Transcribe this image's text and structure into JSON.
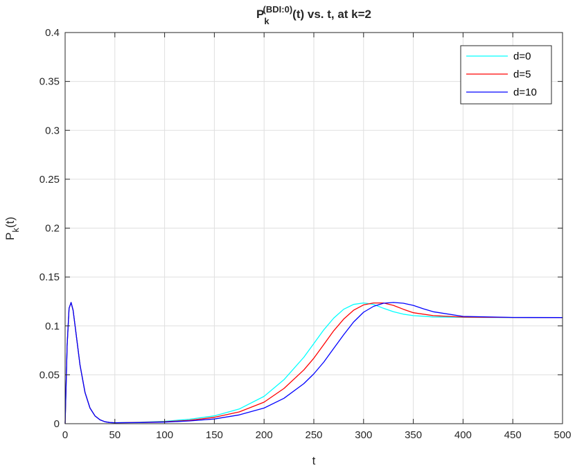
{
  "chart_data": {
    "type": "line",
    "title": {
      "main": "P",
      "sub": "k",
      "sup": "(BDI:0)",
      "rest": "(t) vs. t, at k=2"
    },
    "xlabel": "t",
    "ylabel": {
      "main": "P",
      "sub": "k",
      "rest": "(t)"
    },
    "xlim": [
      0,
      500
    ],
    "ylim": [
      0,
      0.4
    ],
    "xticks": [
      0,
      50,
      100,
      150,
      200,
      250,
      300,
      350,
      400,
      450,
      500
    ],
    "yticks": [
      0,
      0.05,
      0.1,
      0.15,
      0.2,
      0.25,
      0.3,
      0.35,
      0.4
    ],
    "xtick_labels": [
      "0",
      "50",
      "100",
      "150",
      "200",
      "250",
      "300",
      "350",
      "400",
      "450",
      "500"
    ],
    "ytick_labels": [
      "0",
      "0.05",
      "0.1",
      "0.15",
      "0.2",
      "0.25",
      "0.3",
      "0.35",
      "0.4"
    ],
    "grid": true,
    "legend_position": "top-right",
    "series": [
      {
        "name": "d=0",
        "color": "#00ffff",
        "x": [
          0,
          2,
          4,
          6,
          8,
          10,
          15,
          20,
          25,
          30,
          35,
          40,
          45,
          50,
          75,
          100,
          125,
          150,
          175,
          200,
          220,
          240,
          250,
          260,
          270,
          280,
          290,
          300,
          310,
          320,
          330,
          340,
          350,
          370,
          400,
          450,
          500
        ],
        "y": [
          0,
          0.08,
          0.118,
          0.124,
          0.116,
          0.1,
          0.06,
          0.032,
          0.016,
          0.008,
          0.004,
          0.002,
          0.0012,
          0.001,
          0.0015,
          0.0025,
          0.0045,
          0.008,
          0.015,
          0.028,
          0.045,
          0.068,
          0.082,
          0.096,
          0.108,
          0.117,
          0.122,
          0.1235,
          0.122,
          0.118,
          0.1145,
          0.112,
          0.1105,
          0.1092,
          0.1088,
          0.1085,
          0.1085
        ]
      },
      {
        "name": "d=5",
        "color": "#ff0000",
        "x": [
          0,
          2,
          4,
          6,
          8,
          10,
          15,
          20,
          25,
          30,
          35,
          40,
          45,
          50,
          75,
          100,
          125,
          150,
          175,
          200,
          220,
          240,
          250,
          260,
          270,
          280,
          290,
          300,
          310,
          320,
          330,
          340,
          350,
          370,
          400,
          450,
          500
        ],
        "y": [
          0,
          0.08,
          0.118,
          0.124,
          0.116,
          0.1,
          0.06,
          0.032,
          0.016,
          0.008,
          0.004,
          0.002,
          0.0012,
          0.001,
          0.0013,
          0.002,
          0.0035,
          0.0065,
          0.012,
          0.022,
          0.036,
          0.055,
          0.067,
          0.081,
          0.095,
          0.107,
          0.116,
          0.1215,
          0.1235,
          0.1235,
          0.121,
          0.117,
          0.1135,
          0.1105,
          0.109,
          0.1086,
          0.1085
        ]
      },
      {
        "name": "d=10",
        "color": "#0000ff",
        "x": [
          0,
          2,
          4,
          6,
          8,
          10,
          15,
          20,
          25,
          30,
          35,
          40,
          45,
          50,
          75,
          100,
          125,
          150,
          175,
          200,
          220,
          240,
          250,
          260,
          270,
          280,
          290,
          300,
          310,
          320,
          330,
          340,
          350,
          360,
          370,
          400,
          450,
          500
        ],
        "y": [
          0,
          0.08,
          0.118,
          0.124,
          0.116,
          0.1,
          0.06,
          0.032,
          0.016,
          0.008,
          0.004,
          0.002,
          0.0012,
          0.001,
          0.0011,
          0.0016,
          0.0028,
          0.0048,
          0.009,
          0.016,
          0.026,
          0.041,
          0.051,
          0.063,
          0.077,
          0.091,
          0.104,
          0.114,
          0.12,
          0.1232,
          0.124,
          0.1232,
          0.121,
          0.1175,
          0.1145,
          0.1097,
          0.1087,
          0.1085
        ]
      }
    ]
  }
}
